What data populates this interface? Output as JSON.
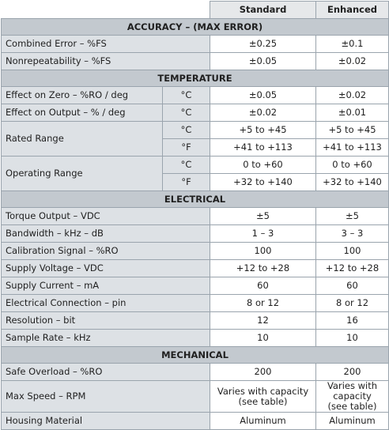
{
  "header": {
    "standard": "Standard",
    "enhanced": "Enhanced"
  },
  "sections": {
    "accuracy": "ACCURACY – (MAX ERROR)",
    "temperature": "TEMPERATURE",
    "electrical": "ELECTRICAL",
    "mechanical": "MECHANICAL"
  },
  "accuracy": [
    {
      "label": "Combined Error – %FS",
      "standard": "±0.25",
      "enhanced": "±0.1"
    },
    {
      "label": "Nonrepeatability – %FS",
      "standard": "±0.05",
      "enhanced": "±0.02"
    }
  ],
  "temperature": {
    "zero": {
      "label": "Effect on Zero – %RO / deg",
      "unit": "°C",
      "standard": "±0.05",
      "enhanced": "±0.02"
    },
    "output": {
      "label": "Effect on Output – % / deg",
      "unit": "°C",
      "standard": "±0.02",
      "enhanced": "±0.01"
    },
    "rated": {
      "label": "Rated Range",
      "c": {
        "unit": "°C",
        "standard": "+5 to +45",
        "enhanced": "+5 to +45"
      },
      "f": {
        "unit": "°F",
        "standard": "+41 to +113",
        "enhanced": "+41 to +113"
      }
    },
    "operating": {
      "label": "Operating Range",
      "c": {
        "unit": "°C",
        "standard": "0 to +60",
        "enhanced": "0 to +60"
      },
      "f": {
        "unit": "°F",
        "standard": "+32 to +140",
        "enhanced": "+32 to +140"
      }
    }
  },
  "electrical": [
    {
      "label": "Torque Output – VDC",
      "standard": "±5",
      "enhanced": "±5"
    },
    {
      "label": "Bandwidth – kHz – dB",
      "standard": "1 – 3",
      "enhanced": "3 – 3"
    },
    {
      "label": "Calibration Signal – %RO",
      "standard": "100",
      "enhanced": "100"
    },
    {
      "label": "Supply Voltage – VDC",
      "standard": "+12 to +28",
      "enhanced": "+12 to +28"
    },
    {
      "label": "Supply Current – mA",
      "standard": "60",
      "enhanced": "60"
    },
    {
      "label": "Electrical Connection – pin",
      "standard": "8 or 12",
      "enhanced": "8 or 12"
    },
    {
      "label": "Resolution – bit",
      "standard": "12",
      "enhanced": "16"
    },
    {
      "label": "Sample Rate – kHz",
      "standard": "10",
      "enhanced": "10"
    }
  ],
  "mechanical": {
    "overload": {
      "label": "Safe Overload – %RO",
      "standard": "200",
      "enhanced": "200"
    },
    "speed": {
      "label": "Max Speed – RPM",
      "standard": "Varies with capacity\n(see table)",
      "enhanced": "Varies with\ncapacity\n(see table)"
    },
    "housing": {
      "label": "Housing Material",
      "standard": "Aluminum",
      "enhanced": "Aluminum"
    }
  }
}
